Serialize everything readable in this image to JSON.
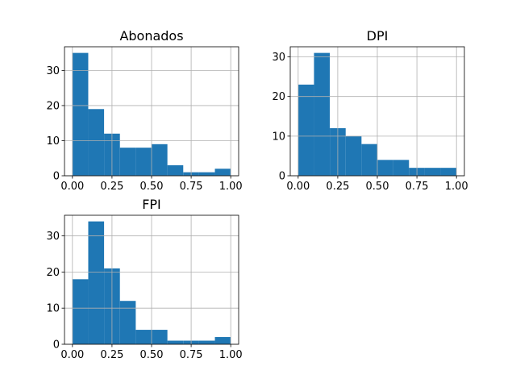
{
  "chart_data": [
    {
      "type": "histogram",
      "title": "Abonados",
      "color": "#1f77b4",
      "grid": true,
      "bins": [
        0,
        0.1,
        0.2,
        0.3,
        0.4,
        0.5,
        0.6,
        0.7,
        0.8,
        0.9,
        1.0
      ],
      "values": [
        35,
        19,
        12,
        8,
        8,
        9,
        3,
        1,
        1,
        2
      ],
      "xlim": [
        -0.05,
        1.05
      ],
      "ylim": [
        0,
        36.75
      ],
      "xticks": [
        {
          "value": 0,
          "label": "0.00"
        },
        {
          "value": 0.25,
          "label": "0.25"
        },
        {
          "value": 0.5,
          "label": "0.50"
        },
        {
          "value": 0.75,
          "label": "0.75"
        },
        {
          "value": 1,
          "label": "1.00"
        }
      ],
      "yticks": [
        0,
        10,
        20,
        30
      ]
    },
    {
      "type": "histogram",
      "title": "DPI",
      "color": "#1f77b4",
      "grid": true,
      "bins": [
        0,
        0.1,
        0.2,
        0.3,
        0.4,
        0.5,
        0.6,
        0.7,
        0.8,
        0.9,
        1.0
      ],
      "values": [
        23,
        31,
        12,
        10,
        8,
        4,
        4,
        2,
        2,
        2
      ],
      "xlim": [
        -0.05,
        1.05
      ],
      "ylim": [
        0,
        32.55
      ],
      "xticks": [
        {
          "value": 0,
          "label": "0.00"
        },
        {
          "value": 0.25,
          "label": "0.25"
        },
        {
          "value": 0.5,
          "label": "0.50"
        },
        {
          "value": 0.75,
          "label": "0.75"
        },
        {
          "value": 1,
          "label": "1.00"
        }
      ],
      "yticks": [
        0,
        10,
        20,
        30
      ]
    },
    {
      "type": "histogram",
      "title": "FPI",
      "color": "#1f77b4",
      "grid": true,
      "bins": [
        0,
        0.1,
        0.2,
        0.3,
        0.4,
        0.5,
        0.6,
        0.7,
        0.8,
        0.9,
        1.0
      ],
      "values": [
        18,
        34,
        21,
        12,
        4,
        4,
        1,
        1,
        1,
        2
      ],
      "xlim": [
        -0.05,
        1.05
      ],
      "ylim": [
        0,
        35.7
      ],
      "xticks": [
        {
          "value": 0,
          "label": "0.00"
        },
        {
          "value": 0.25,
          "label": "0.25"
        },
        {
          "value": 0.5,
          "label": "0.50"
        },
        {
          "value": 0.75,
          "label": "0.75"
        },
        {
          "value": 1,
          "label": "1.00"
        }
      ],
      "yticks": [
        0,
        10,
        20,
        30
      ]
    }
  ]
}
